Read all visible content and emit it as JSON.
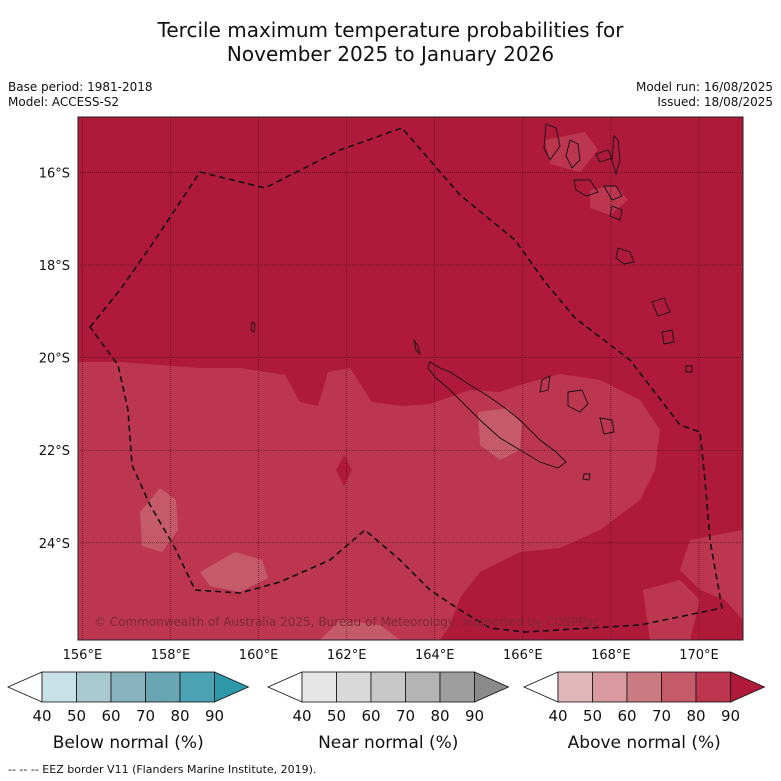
{
  "title_line1": "Tercile maximum temperature probabilities for",
  "title_line2": "November 2025 to January 2026",
  "base_period": "Base period: 1981-2018",
  "model": "Model: ACCESS-S2",
  "model_run": "Model run: 16/08/2025",
  "issued": "Issued: 18/08/2025",
  "copyright": "© Commonwealth of Australia 2025, Bureau of Meteorology, supported by COSPPac",
  "footer": "--  --  -- EEZ border V11 (Flanders Marine Institute, 2019).",
  "map": {
    "lon_range": [
      155.9,
      171.0
    ],
    "lat_range": [
      -26.1,
      -14.8
    ],
    "lon_ticks": [
      "156°E",
      "158°E",
      "160°E",
      "162°E",
      "164°E",
      "166°E",
      "168°E",
      "170°E"
    ],
    "lat_ticks": [
      "16°S",
      "18°S",
      "20°S",
      "22°S",
      "24°S"
    ],
    "grid": true
  },
  "colors": {
    "above_90": "#b01a3a",
    "above_80": "#bc3650",
    "above_70": "#c55a68",
    "above_60": "#cc7b82",
    "above_50": "#d89a9f",
    "above_40": "#e0b8bc"
  },
  "colorbars": [
    {
      "label": "Below normal (%)",
      "ticks": [
        "40",
        "50",
        "60",
        "70",
        "80",
        "90"
      ],
      "colors": [
        "#ffffff",
        "#c8e1e7",
        "#a7c9cf",
        "#89b4bf",
        "#6aa5b3",
        "#4aa2b2",
        "#2e98ab"
      ]
    },
    {
      "label": "Near normal (%)",
      "ticks": [
        "40",
        "50",
        "60",
        "70",
        "80",
        "90"
      ],
      "colors": [
        "#ffffff",
        "#e6e6e6",
        "#d9d9d9",
        "#c8c8c8",
        "#b4b4b4",
        "#9e9e9e",
        "#8a8a8a"
      ]
    },
    {
      "label": "Above normal (%)",
      "ticks": [
        "40",
        "50",
        "60",
        "70",
        "80",
        "90"
      ],
      "colors": [
        "#ffffff",
        "#e0b8bc",
        "#d89a9f",
        "#cc7b82",
        "#c55a68",
        "#bc3650",
        "#b01a3a"
      ]
    }
  ]
}
